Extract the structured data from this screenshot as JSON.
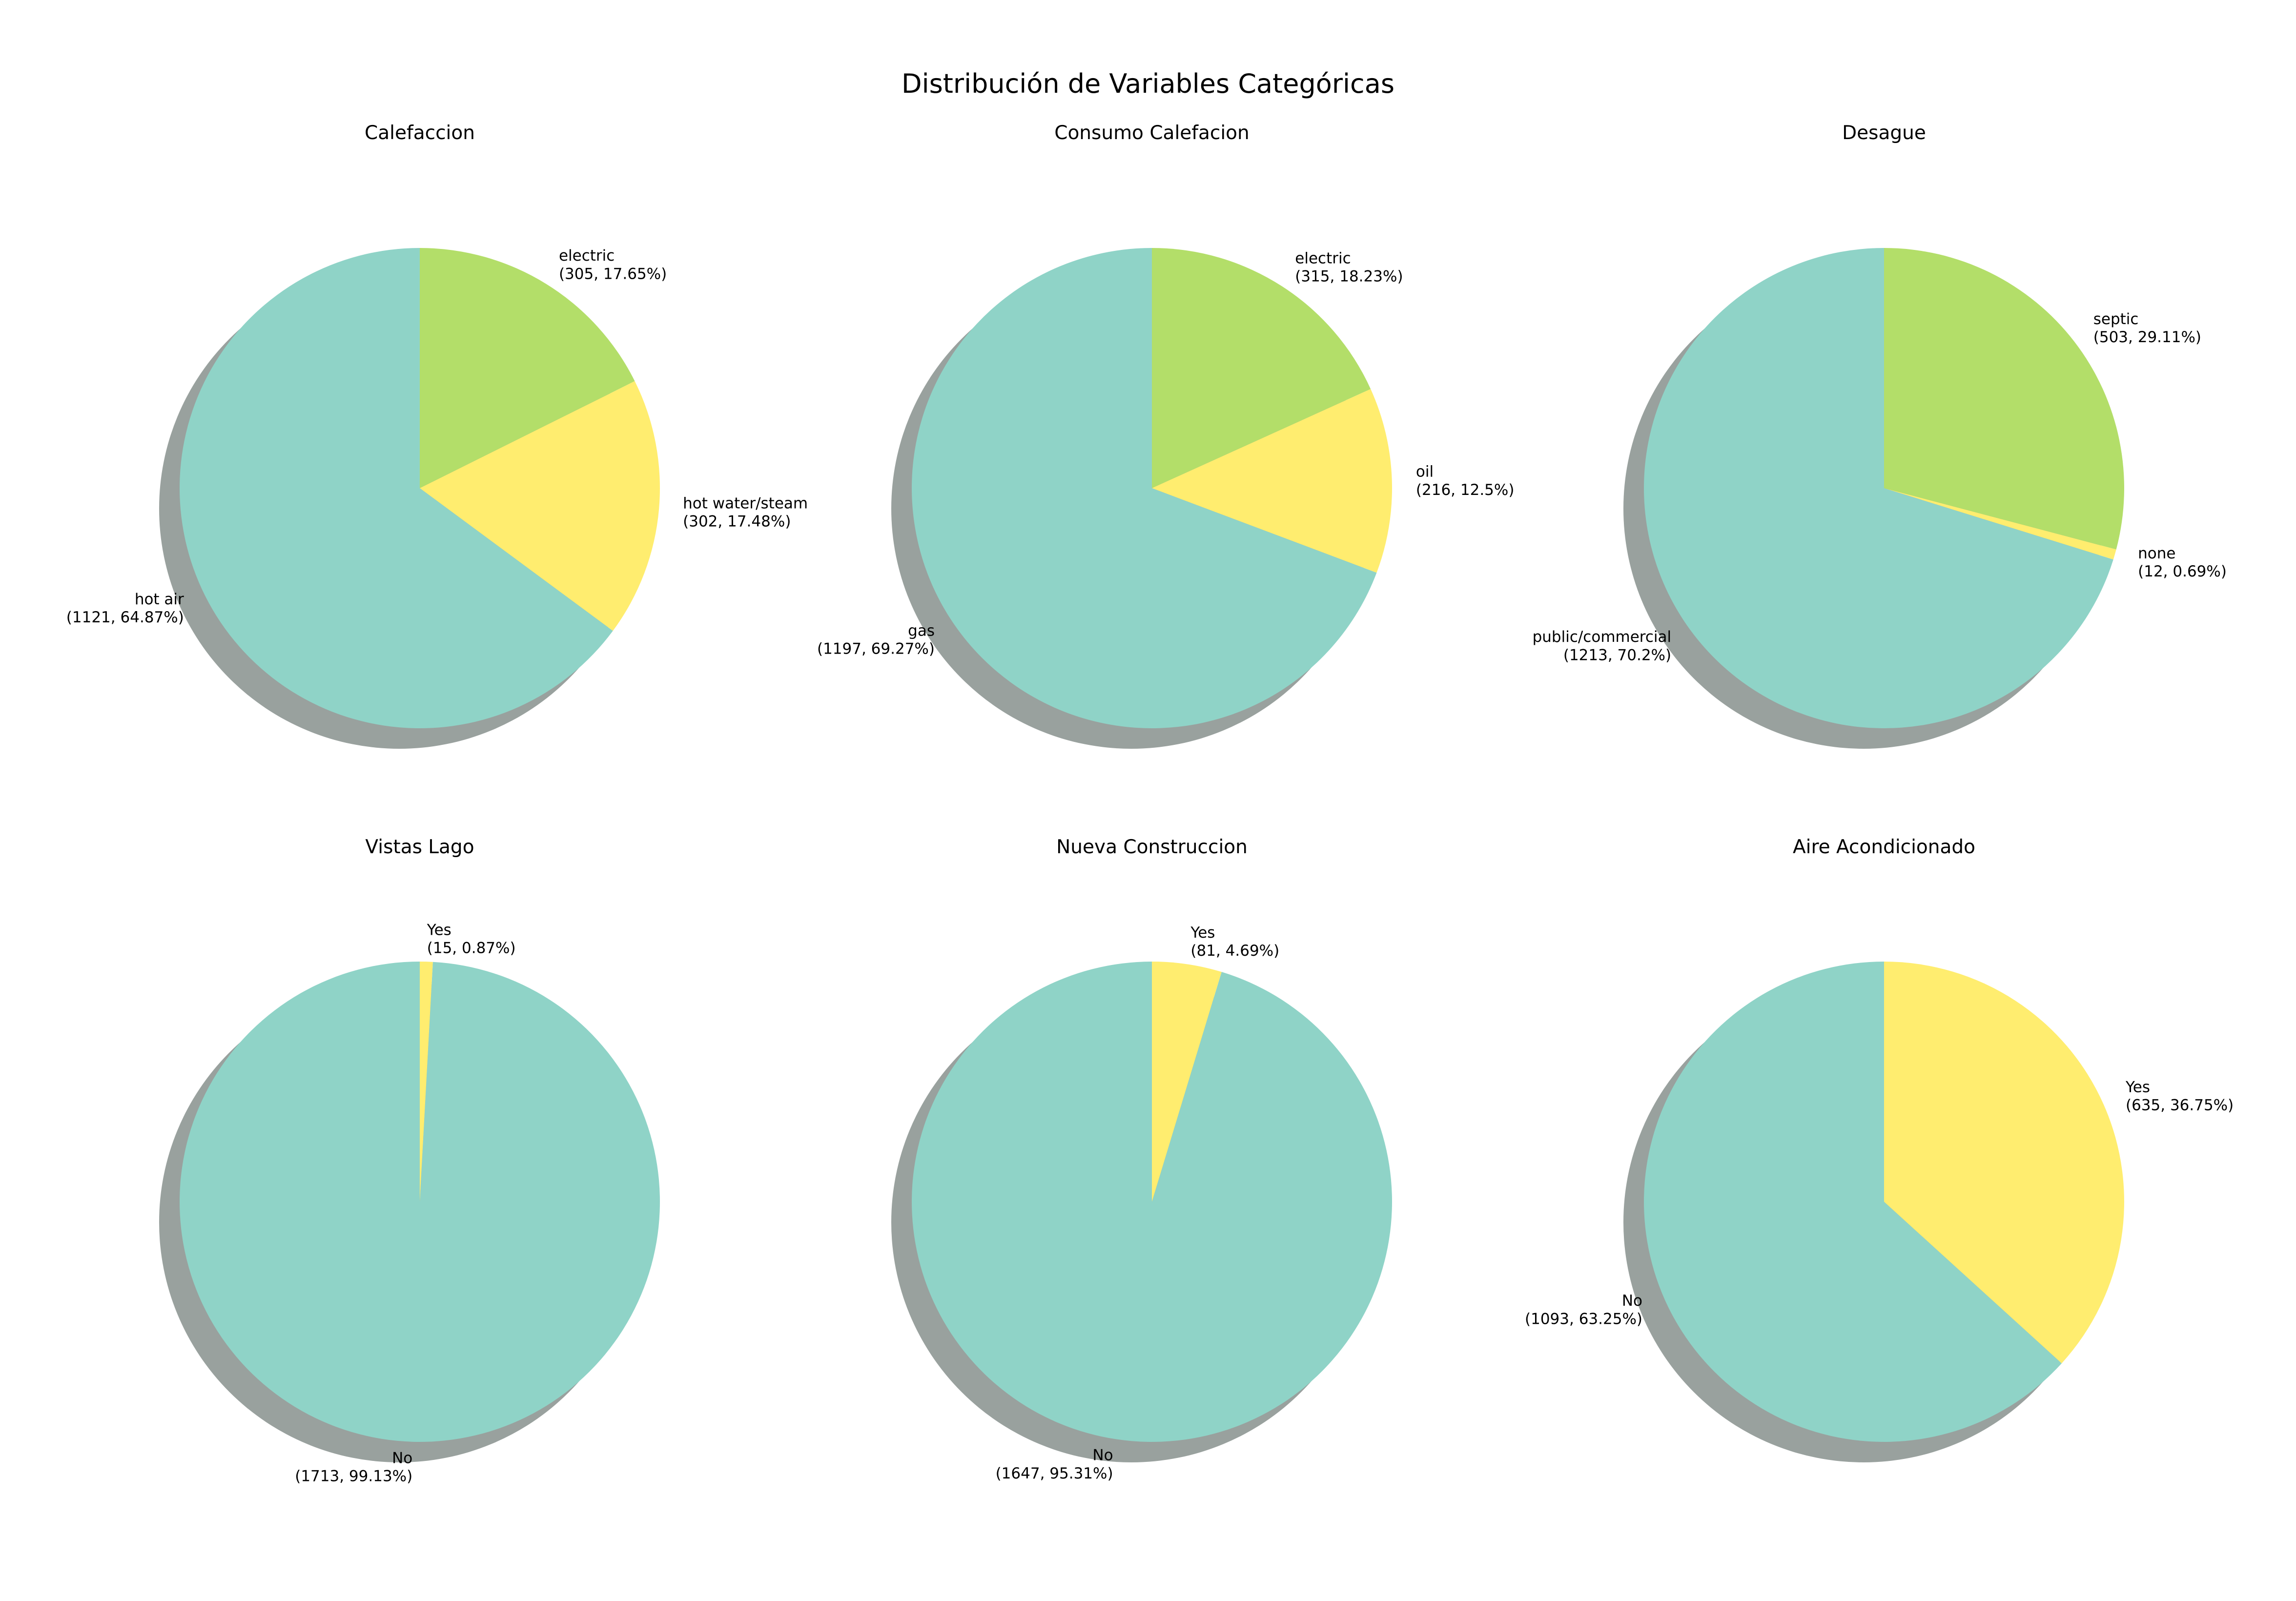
{
  "figure": {
    "title": "Distribución de Variables Categóricas"
  },
  "colors": {
    "slice_1": "#8fd3c7",
    "slice_2": "#ffed6f",
    "slice_3": "#b3de69",
    "shadow": "#8c9893"
  },
  "chart_data": [
    {
      "type": "pie",
      "title": "Calefaccion",
      "slices": [
        {
          "label": "hot air",
          "count": 1121,
          "percent": 64.87,
          "text": "(1121, 64.87%)",
          "color": "#8fd3c7"
        },
        {
          "label": "hot water/steam",
          "count": 302,
          "percent": 17.48,
          "text": "(302, 17.48%)",
          "color": "#ffed6f"
        },
        {
          "label": "electric",
          "count": 305,
          "percent": 17.65,
          "text": "(305, 17.65%)",
          "color": "#b3de69"
        }
      ]
    },
    {
      "type": "pie",
      "title": "Consumo Calefacion",
      "slices": [
        {
          "label": "gas",
          "count": 1197,
          "percent": 69.27,
          "text": "(1197, 69.27%)",
          "color": "#8fd3c7"
        },
        {
          "label": "oil",
          "count": 216,
          "percent": 12.5,
          "text": "(216, 12.5%)",
          "color": "#ffed6f"
        },
        {
          "label": "electric",
          "count": 315,
          "percent": 18.23,
          "text": "(315, 18.23%)",
          "color": "#b3de69"
        }
      ]
    },
    {
      "type": "pie",
      "title": "Desague",
      "slices": [
        {
          "label": "public/commercial",
          "count": 1213,
          "percent": 70.2,
          "text": "(1213, 70.2%)",
          "color": "#8fd3c7"
        },
        {
          "label": "none",
          "count": 12,
          "percent": 0.69,
          "text": "(12, 0.69%)",
          "color": "#ffed6f"
        },
        {
          "label": "septic",
          "count": 503,
          "percent": 29.11,
          "text": "(503, 29.11%)",
          "color": "#b3de69"
        }
      ]
    },
    {
      "type": "pie",
      "title": "Vistas Lago",
      "slices": [
        {
          "label": "No",
          "count": 1713,
          "percent": 99.13,
          "text": "(1713, 99.13%)",
          "color": "#8fd3c7"
        },
        {
          "label": "Yes",
          "count": 15,
          "percent": 0.87,
          "text": "(15, 0.87%)",
          "color": "#ffed6f"
        }
      ]
    },
    {
      "type": "pie",
      "title": "Nueva Construccion",
      "slices": [
        {
          "label": "No",
          "count": 1647,
          "percent": 95.31,
          "text": "(1647, 95.31%)",
          "color": "#8fd3c7"
        },
        {
          "label": "Yes",
          "count": 81,
          "percent": 4.69,
          "text": "(81, 4.69%)",
          "color": "#ffed6f"
        }
      ]
    },
    {
      "type": "pie",
      "title": "Aire Acondicionado",
      "slices": [
        {
          "label": "No",
          "count": 1093,
          "percent": 63.25,
          "text": "(1093, 63.25%)",
          "color": "#8fd3c7"
        },
        {
          "label": "Yes",
          "count": 635,
          "percent": 36.75,
          "text": "(635, 36.75%)",
          "color": "#ffed6f"
        }
      ]
    }
  ]
}
